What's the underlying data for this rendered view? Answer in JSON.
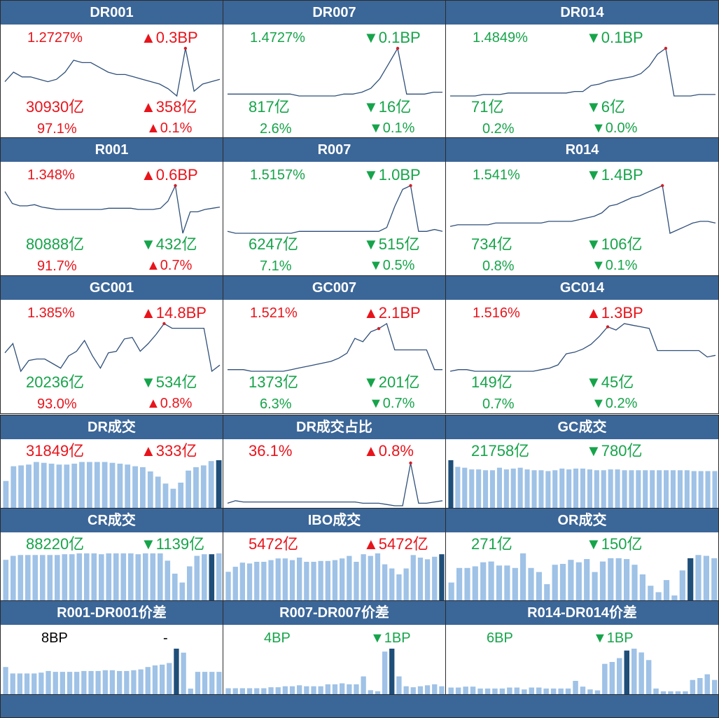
{
  "colors": {
    "up": "#e8141b",
    "down": "#16a44a",
    "header": "#3b6698",
    "line": "#2f4f79",
    "bar": "#9fc2e6",
    "bar_highlight": "#1f4e79",
    "marker": "#d0202a"
  },
  "arrows": {
    "up": "▲",
    "down": "▼"
  },
  "rate_panels": [
    {
      "title": "DR001",
      "rate": "1.2727%",
      "rate_dir": "up",
      "chg": "0.3BP",
      "chg_dir": "up",
      "amt": "30930亿",
      "amt_dir": "up",
      "amt_chg": "358亿",
      "amt_chg_dir": "up",
      "share": "97.1%",
      "share_dir": "up",
      "share_chg": "0.1%",
      "share_chg_dir": "up"
    },
    {
      "title": "DR007",
      "rate": "1.4727%",
      "rate_dir": "down",
      "chg": "0.1BP",
      "chg_dir": "down",
      "amt": "817亿",
      "amt_dir": "down",
      "amt_chg": "16亿",
      "amt_chg_dir": "down",
      "share": "2.6%",
      "share_dir": "down",
      "share_chg": "0.1%",
      "share_chg_dir": "down"
    },
    {
      "title": "DR014",
      "rate": "1.4849%",
      "rate_dir": "down",
      "chg": "0.1BP",
      "chg_dir": "down",
      "amt": "71亿",
      "amt_dir": "down",
      "amt_chg": "6亿",
      "amt_chg_dir": "down",
      "share": "0.2%",
      "share_dir": "down",
      "share_chg": "0.0%",
      "share_chg_dir": "down"
    },
    {
      "title": "R001",
      "rate": "1.348%",
      "rate_dir": "up",
      "chg": "0.6BP",
      "chg_dir": "up",
      "amt": "80888亿",
      "amt_dir": "down",
      "amt_chg": "432亿",
      "amt_chg_dir": "down",
      "share": "91.7%",
      "share_dir": "up",
      "share_chg": "0.7%",
      "share_chg_dir": "up"
    },
    {
      "title": "R007",
      "rate": "1.5157%",
      "rate_dir": "down",
      "chg": "1.0BP",
      "chg_dir": "down",
      "amt": "6247亿",
      "amt_dir": "down",
      "amt_chg": "515亿",
      "amt_chg_dir": "down",
      "share": "7.1%",
      "share_dir": "down",
      "share_chg": "0.5%",
      "share_chg_dir": "down"
    },
    {
      "title": "R014",
      "rate": "1.541%",
      "rate_dir": "down",
      "chg": "1.4BP",
      "chg_dir": "down",
      "amt": "734亿",
      "amt_dir": "down",
      "amt_chg": "106亿",
      "amt_chg_dir": "down",
      "share": "0.8%",
      "share_dir": "down",
      "share_chg": "0.1%",
      "share_chg_dir": "down"
    },
    {
      "title": "GC001",
      "rate": "1.385%",
      "rate_dir": "up",
      "chg": "14.8BP",
      "chg_dir": "up",
      "amt": "20236亿",
      "amt_dir": "down",
      "amt_chg": "534亿",
      "amt_chg_dir": "down",
      "share": "93.0%",
      "share_dir": "up",
      "share_chg": "0.8%",
      "share_chg_dir": "up"
    },
    {
      "title": "GC007",
      "rate": "1.521%",
      "rate_dir": "up",
      "chg": "2.1BP",
      "chg_dir": "up",
      "amt": "1373亿",
      "amt_dir": "down",
      "amt_chg": "201亿",
      "amt_chg_dir": "down",
      "share": "6.3%",
      "share_dir": "down",
      "share_chg": "0.7%",
      "share_chg_dir": "down"
    },
    {
      "title": "GC014",
      "rate": "1.516%",
      "rate_dir": "up",
      "chg": "1.3BP",
      "chg_dir": "up",
      "amt": "149亿",
      "amt_dir": "down",
      "amt_chg": "45亿",
      "amt_chg_dir": "down",
      "share": "0.7%",
      "share_dir": "down",
      "share_chg": "0.2%",
      "share_chg_dir": "down"
    }
  ],
  "volume_panels": [
    {
      "title": "DR成交",
      "main": "31849亿",
      "main_dir": "up",
      "chg": "333亿",
      "chg_dir": "up"
    },
    {
      "title": "DR成交占比",
      "main": "36.1%",
      "main_dir": "up",
      "chg": "0.8%",
      "chg_dir": "up"
    },
    {
      "title": "GC成交",
      "main": "21758亿",
      "main_dir": "down",
      "chg": "780亿",
      "chg_dir": "down"
    },
    {
      "title": "CR成交",
      "main": "88220亿",
      "main_dir": "down",
      "chg": "1139亿",
      "chg_dir": "down"
    },
    {
      "title": "IBO成交",
      "main": "5472亿",
      "main_dir": "up",
      "chg": "5472亿",
      "chg_dir": "up"
    },
    {
      "title": "OR成交",
      "main": "271亿",
      "main_dir": "down",
      "chg": "150亿",
      "chg_dir": "down"
    }
  ],
  "spread_panels": [
    {
      "title": "R001-DR001价差",
      "main": "8BP",
      "main_dir": "neutral",
      "chg": "-",
      "chg_dir": "neutral"
    },
    {
      "title": "R007-DR007价差",
      "main": "4BP",
      "main_dir": "down",
      "chg": "1BP",
      "chg_dir": "down"
    },
    {
      "title": "R014-DR014价差",
      "main": "6BP",
      "main_dir": "down",
      "chg": "1BP",
      "chg_dir": "down"
    }
  ],
  "chart_data": [
    {
      "id": "DR001",
      "type": "line",
      "values": [
        36,
        40,
        38,
        38,
        37,
        36,
        37,
        40,
        45,
        44,
        44,
        42,
        40,
        39,
        39,
        38,
        37,
        36,
        35,
        33,
        30,
        50,
        32,
        35,
        36,
        37
      ],
      "marker_index": 21
    },
    {
      "id": "DR007",
      "type": "line",
      "values": [
        30,
        30,
        30,
        30,
        30,
        30,
        30,
        30,
        29,
        29,
        29,
        29,
        29,
        30,
        30,
        31,
        33,
        38,
        46,
        54,
        30,
        30,
        30,
        31,
        31
      ],
      "marker_index": 19
    },
    {
      "id": "DR014",
      "type": "line",
      "values": [
        30,
        30,
        30,
        30,
        31,
        31,
        31,
        32,
        32,
        32,
        32,
        32,
        32,
        32,
        32,
        33,
        33,
        37,
        38,
        40,
        41,
        42,
        43,
        45,
        50,
        58,
        62,
        30,
        30,
        30,
        31,
        31,
        31
      ],
      "marker_index": 26
    },
    {
      "id": "R001",
      "type": "line",
      "values": [
        55,
        45,
        43,
        43,
        44,
        42,
        41,
        40,
        40,
        40,
        40,
        40,
        40,
        40,
        41,
        41,
        41,
        41,
        40,
        40,
        40,
        41,
        47,
        60,
        20,
        38,
        38,
        40,
        41,
        42
      ],
      "marker_index": 23
    },
    {
      "id": "R007",
      "type": "line",
      "values": [
        40,
        39,
        39,
        39,
        39,
        39,
        39,
        39,
        39,
        40,
        40,
        40,
        40,
        40,
        40,
        40,
        40,
        40,
        40,
        40,
        42,
        53,
        62,
        64,
        40,
        40,
        41,
        40
      ],
      "marker_index": 23
    },
    {
      "id": "R014",
      "type": "line",
      "values": [
        40,
        41,
        41,
        41,
        41,
        41,
        42,
        42,
        42,
        42,
        42,
        42,
        42,
        43,
        43,
        43,
        43,
        44,
        45,
        46,
        48,
        52,
        53,
        55,
        57,
        58,
        60,
        62,
        64,
        36,
        38,
        40,
        42,
        43,
        43,
        42
      ],
      "marker_index": 28
    },
    {
      "id": "GC001",
      "type": "line",
      "values": [
        42,
        48,
        30,
        37,
        38,
        38,
        35,
        32,
        40,
        43,
        50,
        40,
        32,
        42,
        43,
        51,
        52,
        43,
        48,
        54,
        61,
        58,
        58,
        58,
        58,
        58,
        30,
        34
      ],
      "marker_index": 20
    },
    {
      "id": "GC007",
      "type": "line",
      "values": [
        30,
        30,
        30,
        29,
        29,
        29,
        29,
        29,
        30,
        31,
        32,
        33,
        34,
        35,
        37,
        40,
        49,
        47,
        53,
        55,
        58,
        42,
        42,
        42,
        42,
        42,
        30,
        30
      ],
      "marker_index": 19
    },
    {
      "id": "GC014",
      "type": "line",
      "values": [
        30,
        31,
        31,
        30,
        30,
        30,
        30,
        30,
        30,
        30,
        30,
        31,
        32,
        34,
        41,
        42,
        44,
        47,
        52,
        58,
        56,
        60,
        59,
        58,
        57,
        43,
        43,
        43,
        43,
        43,
        43,
        39,
        40
      ],
      "marker_index": 19
    },
    {
      "id": "DR成交",
      "type": "bar",
      "values": [
        32,
        49,
        50,
        51,
        54,
        53,
        52,
        51,
        51,
        52,
        54,
        54,
        54,
        54,
        53,
        52,
        51,
        49,
        48,
        43,
        37,
        29,
        23,
        30,
        44,
        48,
        50,
        55,
        56
      ],
      "highlight_index": 28
    },
    {
      "id": "DR成交占比",
      "type": "line",
      "values": [
        30,
        32,
        31,
        31,
        31,
        31,
        31,
        31,
        31,
        31,
        31,
        31,
        31,
        31,
        31,
        31,
        31,
        30,
        30,
        30,
        29,
        28,
        28,
        62,
        30,
        30,
        31,
        32
      ],
      "marker_index": 23
    },
    {
      "id": "GC成交",
      "type": "bar",
      "values": [
        58,
        50,
        49,
        47,
        47,
        46,
        46,
        49,
        47,
        48,
        49,
        47,
        46,
        46,
        45,
        46,
        48,
        47,
        48,
        48,
        47,
        46,
        46,
        47,
        47,
        46,
        46,
        46,
        46,
        46,
        46,
        46,
        46,
        46,
        46,
        45,
        45,
        45,
        45
      ],
      "highlight_index": 0
    },
    {
      "id": "CR成交",
      "type": "bar",
      "values": [
        50,
        55,
        56,
        56,
        56,
        56,
        56,
        56,
        57,
        57,
        58,
        58,
        58,
        57,
        58,
        58,
        58,
        58,
        57,
        58,
        58,
        58,
        49,
        33,
        22,
        42,
        55,
        57,
        57,
        58
      ],
      "highlight_index": 28
    },
    {
      "id": "IBO成交",
      "type": "bar",
      "values": [
        34,
        40,
        45,
        44,
        46,
        46,
        48,
        50,
        50,
        48,
        51,
        46,
        46,
        47,
        47,
        48,
        50,
        53,
        46,
        55,
        53,
        56,
        43,
        38,
        31,
        38,
        54,
        51,
        49,
        52,
        55
      ],
      "highlight_index": 30
    },
    {
      "id": "OR成交",
      "type": "bar",
      "values": [
        22,
        40,
        40,
        42,
        47,
        48,
        43,
        43,
        40,
        58,
        40,
        35,
        20,
        44,
        45,
        50,
        47,
        51,
        35,
        48,
        52,
        52,
        51,
        44,
        32,
        18,
        10,
        25,
        6,
        37,
        52,
        56,
        55,
        52
      ],
      "highlight_index": 30
    },
    {
      "id": "R001-DR001价差",
      "type": "bar",
      "values": [
        34,
        26,
        26,
        26,
        26,
        27,
        29,
        28,
        28,
        28,
        28,
        29,
        29,
        29,
        30,
        30,
        29,
        29,
        30,
        31,
        34,
        36,
        37,
        39,
        57,
        52,
        7,
        28,
        28,
        28,
        28
      ],
      "highlight_index": 24
    },
    {
      "id": "R007-DR007价差",
      "type": "bar",
      "values": [
        6,
        6,
        6,
        6,
        6,
        6,
        7,
        7,
        8,
        8,
        9,
        8,
        8,
        8,
        10,
        10,
        11,
        10,
        10,
        18,
        4,
        3,
        43,
        46,
        18,
        8,
        7,
        8,
        9,
        10,
        8
      ],
      "highlight_index": 23
    },
    {
      "id": "R014-DR014价差",
      "type": "bar",
      "values": [
        7,
        7,
        8,
        8,
        6,
        6,
        6,
        6,
        7,
        7,
        5,
        7,
        7,
        6,
        6,
        6,
        6,
        14,
        8,
        5,
        4,
        32,
        34,
        38,
        46,
        48,
        44,
        36,
        6,
        3,
        3,
        3,
        3,
        15,
        17,
        21,
        15
      ],
      "highlight_index": 24
    }
  ]
}
